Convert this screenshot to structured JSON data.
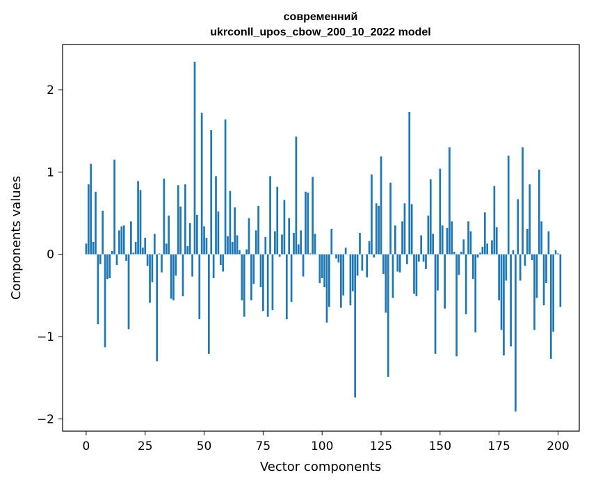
{
  "chart_data": {
    "type": "bar",
    "title_line1": "современний",
    "title_line2": "ukrconll_upos_cbow_200_10_2022 model",
    "xlabel": "Vector components",
    "ylabel": "Components values",
    "xlim": [
      -10,
      209
    ],
    "ylim": [
      -2.15,
      2.55
    ],
    "xticks": [
      0,
      25,
      50,
      75,
      100,
      125,
      150,
      175,
      200
    ],
    "yticks": [
      -2,
      -1,
      0,
      1,
      2
    ],
    "ytick_labels": [
      "−2",
      "−1",
      "0",
      "1",
      "2"
    ],
    "bar_color": "#1f77b4",
    "values": [
      0.13,
      0.85,
      1.1,
      0.15,
      0.76,
      -0.85,
      -0.12,
      0.53,
      -1.13,
      -0.3,
      -0.29,
      0.04,
      1.15,
      -0.13,
      0.29,
      0.34,
      0.35,
      -0.08,
      -0.91,
      0.4,
      0.02,
      0.15,
      0.89,
      0.78,
      0.08,
      0.2,
      -0.14,
      -0.59,
      -0.34,
      0.25,
      -1.3,
      0.01,
      -0.22,
      0.92,
      0.13,
      0.47,
      -0.54,
      -0.56,
      -0.26,
      0.84,
      0.58,
      -0.51,
      0.85,
      0.1,
      0.38,
      -0.27,
      2.34,
      0.48,
      -0.79,
      1.72,
      0.34,
      0.2,
      -1.21,
      1.51,
      -0.29,
      0.95,
      0.52,
      -0.13,
      -0.21,
      1.64,
      0.22,
      0.77,
      0.15,
      0.57,
      0.23,
      0.05,
      -0.56,
      -0.76,
      0.06,
      0.44,
      -0.56,
      -0.36,
      0.29,
      0.59,
      -0.4,
      -0.69,
      0.21,
      -0.76,
      0.95,
      -0.68,
      0.28,
      0.82,
      -0.03,
      0.24,
      0.66,
      -0.79,
      0.44,
      -0.58,
      0.26,
      1.43,
      0.12,
      0.29,
      -0.27,
      0.76,
      0.75,
      0.01,
      0.94,
      0.25,
      0.0,
      -0.35,
      -0.29,
      -0.4,
      -0.83,
      -0.64,
      0.31,
      0.0,
      -0.05,
      -0.1,
      -0.65,
      -0.5,
      0.08,
      0.0,
      -0.62,
      -0.45,
      -1.74,
      -0.26,
      0.26,
      -0.2,
      0.0,
      -0.28,
      0.16,
      0.97,
      -0.04,
      0.62,
      0.59,
      1.19,
      -0.24,
      -0.71,
      -1.49,
      0.87,
      -0.53,
      0.35,
      -0.21,
      -0.22,
      0.4,
      0.62,
      -0.12,
      1.73,
      0.61,
      -0.48,
      -0.51,
      -0.09,
      0.23,
      -0.09,
      -0.18,
      0.47,
      0.91,
      0.25,
      -1.21,
      -0.44,
      1.04,
      0.35,
      -0.66,
      0.32,
      1.3,
      0.4,
      0.03,
      -1.24,
      -0.25,
      0.03,
      0.18,
      -0.73,
      0.4,
      0.28,
      -0.3,
      -0.95,
      -0.04,
      0.02,
      0.09,
      0.51,
      0.13,
      0.0,
      0.17,
      0.83,
      0.33,
      -0.56,
      -0.92,
      -1.23,
      -0.32,
      1.2,
      -1.12,
      0.05,
      -1.91,
      0.67,
      -0.32,
      1.3,
      -0.14,
      0.31,
      0.85,
      -0.07,
      -0.92,
      -0.53,
      1.03,
      0.4,
      -0.62,
      -0.35,
      0.28,
      -1.27,
      -0.94,
      0.05,
      0.01,
      -0.64
    ]
  }
}
